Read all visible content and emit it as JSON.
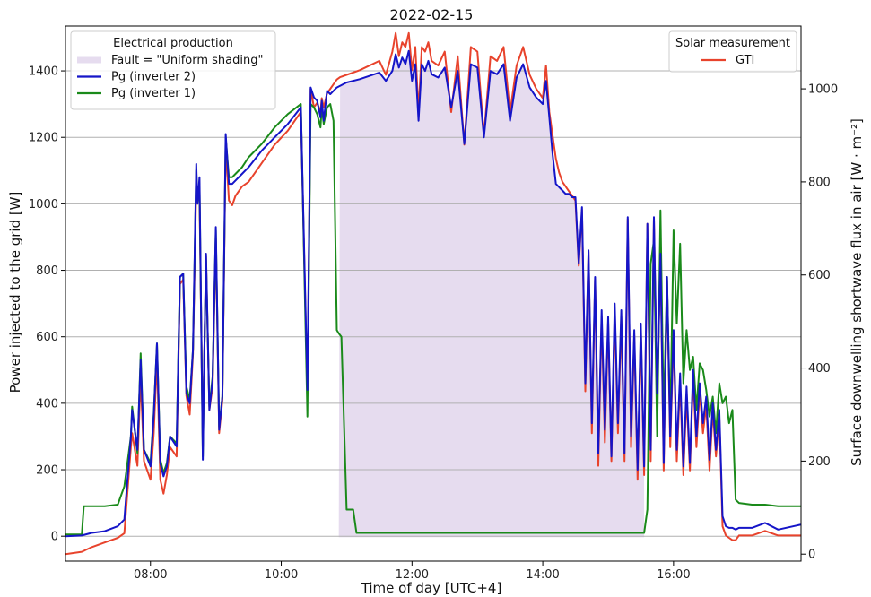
{
  "chart_data": {
    "type": "line",
    "title": "2022-02-15",
    "xlabel": "Time of day [UTC+4]",
    "ylabel_left": "Power injected to the grid [W]",
    "ylabel_right": "Surface downwelling shortwave flux in air [W · m⁻²]",
    "xlim": [
      6.7,
      17.95
    ],
    "ylim_left": [
      -75,
      1535
    ],
    "ylim_right": [
      -15,
      1135
    ],
    "x_ticks": [
      8,
      10,
      12,
      14,
      16
    ],
    "x_tick_labels": [
      "08:00",
      "10:00",
      "12:00",
      "14:00",
      "16:00"
    ],
    "y_left_ticks": [
      0,
      200,
      400,
      600,
      800,
      1000,
      1200,
      1400
    ],
    "y_right_ticks": [
      0,
      200,
      400,
      600,
      800,
      1000
    ],
    "grid": "horizontal",
    "legend_left": {
      "title": "Electrical production",
      "placement": "top-left",
      "entries": [
        "Fault = \"Uniform shading\"",
        "Pg (inverter 2)",
        "Pg (inverter 1)"
      ]
    },
    "legend_right": {
      "title": "Solar measurement",
      "placement": "top-right",
      "entries": [
        "GTI"
      ]
    },
    "fault_span": {
      "label": "Fault = \"Uniform shading\"",
      "x_start": 10.88,
      "x_end": 15.55,
      "color": "#e6dcef"
    },
    "series": [
      {
        "name": "Pg (inverter 2)",
        "axis": "left",
        "color": "#1515c8",
        "x": [
          6.7,
          6.95,
          7.1,
          7.3,
          7.5,
          7.6,
          7.7,
          7.72,
          7.8,
          7.85,
          7.9,
          8.0,
          8.05,
          8.1,
          8.15,
          8.2,
          8.25,
          8.3,
          8.4,
          8.45,
          8.5,
          8.55,
          8.6,
          8.65,
          8.7,
          8.72,
          8.75,
          8.8,
          8.82,
          8.85,
          8.9,
          8.95,
          9.0,
          9.05,
          9.1,
          9.15,
          9.2,
          9.25,
          9.3,
          9.4,
          9.5,
          9.7,
          9.9,
          10.1,
          10.3,
          10.4,
          10.45,
          10.5,
          10.55,
          10.6,
          10.62,
          10.65,
          10.7,
          10.75,
          10.8,
          10.85,
          10.9,
          11.0,
          11.2,
          11.5,
          11.6,
          11.7,
          11.75,
          11.8,
          11.85,
          11.9,
          11.95,
          12.0,
          12.05,
          12.1,
          12.15,
          12.2,
          12.25,
          12.3,
          12.4,
          12.5,
          12.6,
          12.7,
          12.8,
          12.9,
          13.0,
          13.1,
          13.2,
          13.3,
          13.4,
          13.5,
          13.6,
          13.7,
          13.8,
          13.9,
          14.0,
          14.05,
          14.1,
          14.15,
          14.2,
          14.25,
          14.3,
          14.35,
          14.4,
          14.45,
          14.5,
          14.55,
          14.6,
          14.65,
          14.7,
          14.75,
          14.8,
          14.85,
          14.9,
          14.95,
          15.0,
          15.05,
          15.1,
          15.15,
          15.2,
          15.25,
          15.3,
          15.35,
          15.4,
          15.45,
          15.5,
          15.55,
          15.6,
          15.65,
          15.7,
          15.75,
          15.8,
          15.85,
          15.9,
          15.95,
          16.0,
          16.05,
          16.1,
          16.15,
          16.2,
          16.25,
          16.3,
          16.35,
          16.4,
          16.45,
          16.5,
          16.55,
          16.6,
          16.65,
          16.7,
          16.75,
          16.8,
          16.85,
          16.9,
          16.95,
          17.0,
          17.2,
          17.4,
          17.6,
          17.95
        ],
        "values": [
          0,
          2,
          10,
          15,
          30,
          50,
          300,
          380,
          260,
          530,
          260,
          210,
          360,
          580,
          220,
          180,
          210,
          300,
          270,
          780,
          790,
          430,
          400,
          560,
          1120,
          1000,
          1080,
          230,
          500,
          850,
          380,
          470,
          930,
          320,
          420,
          1210,
          1060,
          1060,
          1070,
          1090,
          1110,
          1160,
          1200,
          1240,
          1290,
          440,
          1350,
          1320,
          1310,
          1260,
          1310,
          1250,
          1340,
          1330,
          1340,
          1350,
          1355,
          1365,
          1375,
          1395,
          1370,
          1400,
          1450,
          1410,
          1440,
          1420,
          1460,
          1370,
          1420,
          1250,
          1420,
          1400,
          1430,
          1390,
          1380,
          1410,
          1290,
          1400,
          1180,
          1420,
          1410,
          1200,
          1400,
          1390,
          1420,
          1250,
          1380,
          1420,
          1350,
          1320,
          1300,
          1370,
          1260,
          1150,
          1060,
          1050,
          1040,
          1030,
          1030,
          1020,
          1020,
          820,
          990,
          460,
          860,
          340,
          780,
          250,
          680,
          320,
          660,
          240,
          700,
          340,
          680,
          250,
          960,
          300,
          620,
          200,
          640,
          210,
          940,
          260,
          960,
          430,
          850,
          220,
          780,
          300,
          620,
          260,
          490,
          210,
          450,
          220,
          500,
          300,
          460,
          340,
          420,
          230,
          400,
          260,
          380,
          60,
          30,
          25,
          25,
          20,
          25,
          25,
          40,
          20,
          35
        ],
        "note": ""
      },
      {
        "name": "Pg (inverter 1)",
        "axis": "left",
        "color": "#1a8a1a",
        "x": [
          6.7,
          6.95,
          6.98,
          7.1,
          7.3,
          7.5,
          7.6,
          7.7,
          7.72,
          7.8,
          7.85,
          7.9,
          8.0,
          8.05,
          8.1,
          8.15,
          8.2,
          8.25,
          8.3,
          8.4,
          8.45,
          8.5,
          8.55,
          8.6,
          8.65,
          8.7,
          8.72,
          8.75,
          8.8,
          8.82,
          8.85,
          8.9,
          8.95,
          9.0,
          9.05,
          9.1,
          9.15,
          9.2,
          9.25,
          9.3,
          9.4,
          9.5,
          9.7,
          9.9,
          10.1,
          10.3,
          10.4,
          10.45,
          10.5,
          10.55,
          10.6,
          10.62,
          10.65,
          10.7,
          10.75,
          10.8,
          10.85,
          10.88,
          10.92,
          11.0,
          11.02,
          11.1,
          11.15,
          11.2,
          15.5,
          15.55,
          15.6,
          15.65,
          15.7,
          15.75,
          15.8,
          15.85,
          15.9,
          15.95,
          16.0,
          16.05,
          16.1,
          16.15,
          16.2,
          16.25,
          16.3,
          16.35,
          16.4,
          16.45,
          16.5,
          16.55,
          16.6,
          16.65,
          16.7,
          16.75,
          16.8,
          16.85,
          16.9,
          16.95,
          17.0,
          17.2,
          17.4,
          17.6,
          17.95
        ],
        "values": [
          5,
          5,
          90,
          90,
          90,
          95,
          150,
          300,
          390,
          250,
          550,
          260,
          220,
          370,
          580,
          230,
          190,
          220,
          300,
          280,
          780,
          790,
          450,
          410,
          560,
          1100,
          1010,
          1060,
          240,
          500,
          830,
          390,
          480,
          920,
          330,
          420,
          1200,
          1080,
          1080,
          1090,
          1110,
          1140,
          1180,
          1230,
          1270,
          1300,
          360,
          1300,
          1290,
          1270,
          1230,
          1290,
          1240,
          1290,
          1300,
          1250,
          620,
          610,
          600,
          80,
          80,
          80,
          10,
          10,
          10,
          10,
          80,
          820,
          890,
          300,
          980,
          350,
          780,
          330,
          920,
          640,
          880,
          460,
          620,
          500,
          540,
          380,
          520,
          500,
          440,
          360,
          420,
          310,
          460,
          400,
          420,
          340,
          380,
          110,
          100,
          95,
          95,
          90,
          90
        ],
        "note": ""
      },
      {
        "name": "GTI",
        "axis": "right",
        "color": "#e8432c",
        "x": [
          6.7,
          6.95,
          7.1,
          7.3,
          7.5,
          7.6,
          7.7,
          7.72,
          7.8,
          7.85,
          7.9,
          8.0,
          8.05,
          8.1,
          8.15,
          8.2,
          8.25,
          8.3,
          8.4,
          8.45,
          8.5,
          8.55,
          8.6,
          8.65,
          8.7,
          8.72,
          8.75,
          8.8,
          8.82,
          8.85,
          8.9,
          8.95,
          9.0,
          9.05,
          9.1,
          9.15,
          9.2,
          9.25,
          9.3,
          9.4,
          9.5,
          9.7,
          9.9,
          10.1,
          10.3,
          10.4,
          10.45,
          10.5,
          10.55,
          10.6,
          10.62,
          10.65,
          10.7,
          10.75,
          10.8,
          10.85,
          10.9,
          11.0,
          11.2,
          11.5,
          11.6,
          11.7,
          11.75,
          11.8,
          11.85,
          11.9,
          11.95,
          12.0,
          12.05,
          12.1,
          12.15,
          12.2,
          12.25,
          12.3,
          12.4,
          12.5,
          12.6,
          12.7,
          12.8,
          12.9,
          13.0,
          13.1,
          13.2,
          13.3,
          13.4,
          13.5,
          13.6,
          13.7,
          13.8,
          13.9,
          14.0,
          14.05,
          14.1,
          14.15,
          14.2,
          14.25,
          14.3,
          14.35,
          14.4,
          14.45,
          14.5,
          14.55,
          14.6,
          14.65,
          14.7,
          14.75,
          14.8,
          14.85,
          14.9,
          14.95,
          15.0,
          15.05,
          15.1,
          15.15,
          15.2,
          15.25,
          15.3,
          15.35,
          15.4,
          15.45,
          15.5,
          15.55,
          15.6,
          15.65,
          15.7,
          15.75,
          15.8,
          15.85,
          15.9,
          15.95,
          16.0,
          16.05,
          16.1,
          16.15,
          16.2,
          16.25,
          16.3,
          16.35,
          16.4,
          16.45,
          16.5,
          16.55,
          16.6,
          16.65,
          16.7,
          16.75,
          16.8,
          16.85,
          16.9,
          16.95,
          17.0,
          17.2,
          17.4,
          17.6,
          17.95
        ],
        "values": [
          0,
          5,
          15,
          25,
          35,
          45,
          230,
          260,
          190,
          380,
          200,
          160,
          260,
          420,
          160,
          130,
          170,
          230,
          210,
          580,
          590,
          340,
          300,
          430,
          790,
          760,
          770,
          230,
          400,
          640,
          310,
          360,
          680,
          260,
          330,
          880,
          760,
          750,
          770,
          790,
          800,
          840,
          880,
          910,
          950,
          340,
          1000,
          960,
          970,
          950,
          980,
          960,
          990,
          1000,
          1010,
          1020,
          1025,
          1030,
          1040,
          1060,
          1030,
          1080,
          1120,
          1070,
          1100,
          1090,
          1120,
          1040,
          1090,
          950,
          1090,
          1080,
          1100,
          1060,
          1050,
          1080,
          950,
          1070,
          880,
          1090,
          1080,
          900,
          1070,
          1060,
          1090,
          950,
          1050,
          1090,
          1030,
          1000,
          980,
          1050,
          950,
          900,
          850,
          820,
          800,
          790,
          780,
          770,
          760,
          620,
          740,
          350,
          650,
          260,
          590,
          190,
          510,
          240,
          500,
          200,
          520,
          260,
          510,
          200,
          720,
          230,
          470,
          160,
          480,
          170,
          710,
          200,
          720,
          330,
          640,
          180,
          590,
          230,
          470,
          200,
          370,
          170,
          340,
          180,
          380,
          230,
          350,
          260,
          320,
          180,
          310,
          210,
          300,
          60,
          40,
          35,
          30,
          30,
          40,
          40,
          50,
          40,
          40
        ],
        "note": ""
      }
    ]
  }
}
